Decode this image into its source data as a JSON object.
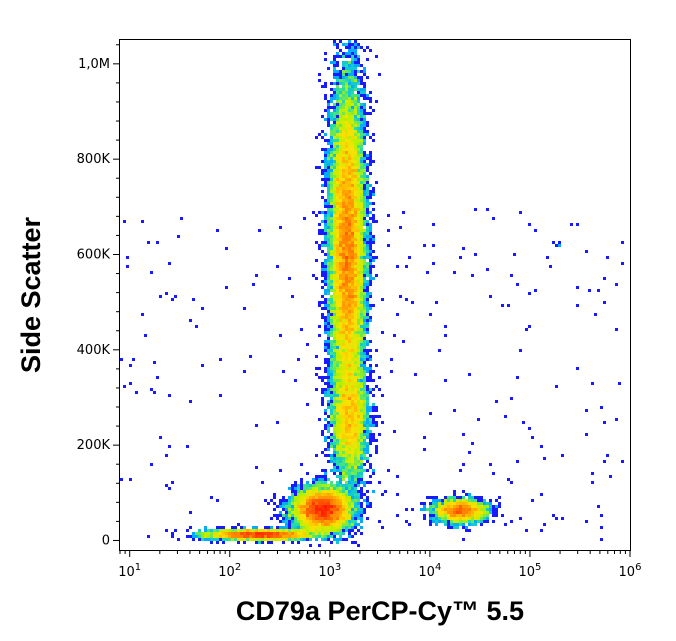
{
  "chart_data": {
    "type": "scatter",
    "title": "",
    "xlabel": "CD79a PerCP-Cy™ 5.5",
    "ylabel": "Side Scatter",
    "x_scale": "log",
    "xlim": [
      8,
      1000000
    ],
    "ylim": [
      -20000,
      1050000
    ],
    "x_ticks": [
      {
        "value": 10,
        "base": "10",
        "exp": "1"
      },
      {
        "value": 100,
        "base": "10",
        "exp": "2"
      },
      {
        "value": 1000,
        "base": "10",
        "exp": "3"
      },
      {
        "value": 10000,
        "base": "10",
        "exp": "4"
      },
      {
        "value": 100000,
        "base": "10",
        "exp": "5"
      },
      {
        "value": 1000000,
        "base": "10",
        "exp": "6"
      }
    ],
    "y_ticks": [
      {
        "value": 0,
        "label": "0"
      },
      {
        "value": 200000,
        "label": "200K"
      },
      {
        "value": 400000,
        "label": "400K"
      },
      {
        "value": 600000,
        "label": "600K"
      },
      {
        "value": 800000,
        "label": "800K"
      },
      {
        "value": 1000000,
        "label": "1,0M"
      }
    ],
    "grid": false,
    "legend": "none",
    "color_scale": [
      "#1a1aff",
      "#00b4ff",
      "#27e0a0",
      "#b8f000",
      "#ffe000",
      "#ff8800",
      "#ff1800"
    ],
    "populations": [
      {
        "x_center": 1500,
        "y_center": 610000,
        "x_spread_log": 0.085,
        "y_spread": 170000,
        "weight": 0.46
      },
      {
        "x_center": 1600,
        "y_center": 250000,
        "x_spread_log": 0.09,
        "y_spread": 60000,
        "weight": 0.09
      },
      {
        "x_center": 850,
        "y_center": 65000,
        "x_spread_log": 0.14,
        "y_spread": 22000,
        "weight": 0.18
      },
      {
        "x_center": 200,
        "y_center": 12000,
        "x_spread_log": 0.26,
        "y_spread": 5000,
        "weight": 0.08
      },
      {
        "x_center": 20000,
        "y_center": 62000,
        "x_spread_log": 0.13,
        "y_spread": 12000,
        "weight": 0.06
      }
    ]
  }
}
